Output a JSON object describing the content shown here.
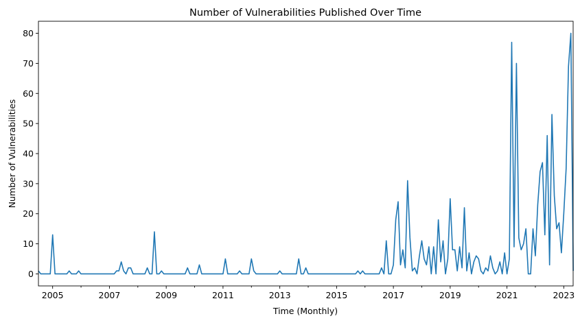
{
  "chart_data": {
    "type": "line",
    "title": "Number of Vulnerabilities Published Over Time",
    "xlabel": "Time (Monthly)",
    "ylabel": "Number of Vulnerabilities",
    "xlim": [
      2004.5,
      2023.33
    ],
    "ylim": [
      -4,
      84
    ],
    "grid": false,
    "line_color": "#1f77b4",
    "x_ticks": [
      {
        "value": 2005,
        "label": "2005"
      },
      {
        "value": 2007,
        "label": "2007"
      },
      {
        "value": 2009,
        "label": "2009"
      },
      {
        "value": 2011,
        "label": "2011"
      },
      {
        "value": 2013,
        "label": "2013"
      },
      {
        "value": 2015,
        "label": "2015"
      },
      {
        "value": 2017,
        "label": "2017"
      },
      {
        "value": 2019,
        "label": "2019"
      },
      {
        "value": 2021,
        "label": "2021"
      },
      {
        "value": 2023,
        "label": "2023"
      }
    ],
    "y_ticks": [
      {
        "value": 0,
        "label": "0"
      },
      {
        "value": 10,
        "label": "10"
      },
      {
        "value": 20,
        "label": "20"
      },
      {
        "value": 30,
        "label": "30"
      },
      {
        "value": 40,
        "label": "40"
      },
      {
        "value": 50,
        "label": "50"
      },
      {
        "value": 60,
        "label": "60"
      },
      {
        "value": 70,
        "label": "70"
      },
      {
        "value": 80,
        "label": "80"
      }
    ],
    "series": [
      {
        "points": [
          [
            "2004-07",
            1
          ],
          [
            "2004-08",
            0
          ],
          [
            "2004-09",
            0
          ],
          [
            "2004-10",
            0
          ],
          [
            "2004-11",
            0
          ],
          [
            "2004-12",
            0
          ],
          [
            "2005-01",
            13
          ],
          [
            "2005-02",
            0
          ],
          [
            "2005-03",
            0
          ],
          [
            "2005-04",
            0
          ],
          [
            "2005-05",
            0
          ],
          [
            "2005-06",
            0
          ],
          [
            "2005-07",
            0
          ],
          [
            "2005-08",
            1
          ],
          [
            "2005-09",
            0
          ],
          [
            "2005-10",
            0
          ],
          [
            "2005-11",
            0
          ],
          [
            "2005-12",
            1
          ],
          [
            "2006-01",
            0
          ],
          [
            "2006-02",
            0
          ],
          [
            "2006-03",
            0
          ],
          [
            "2006-04",
            0
          ],
          [
            "2006-05",
            0
          ],
          [
            "2006-06",
            0
          ],
          [
            "2006-07",
            0
          ],
          [
            "2006-08",
            0
          ],
          [
            "2006-09",
            0
          ],
          [
            "2006-10",
            0
          ],
          [
            "2006-11",
            0
          ],
          [
            "2006-12",
            0
          ],
          [
            "2007-01",
            0
          ],
          [
            "2007-02",
            0
          ],
          [
            "2007-03",
            0
          ],
          [
            "2007-04",
            1
          ],
          [
            "2007-05",
            1
          ],
          [
            "2007-06",
            4
          ],
          [
            "2007-07",
            1
          ],
          [
            "2007-08",
            0
          ],
          [
            "2007-09",
            2
          ],
          [
            "2007-10",
            2
          ],
          [
            "2007-11",
            0
          ],
          [
            "2007-12",
            0
          ],
          [
            "2008-01",
            0
          ],
          [
            "2008-02",
            0
          ],
          [
            "2008-03",
            0
          ],
          [
            "2008-04",
            0
          ],
          [
            "2008-05",
            2
          ],
          [
            "2008-06",
            0
          ],
          [
            "2008-07",
            0
          ],
          [
            "2008-08",
            14
          ],
          [
            "2008-09",
            0
          ],
          [
            "2008-10",
            0
          ],
          [
            "2008-11",
            1
          ],
          [
            "2008-12",
            0
          ],
          [
            "2009-01",
            0
          ],
          [
            "2009-02",
            0
          ],
          [
            "2009-03",
            0
          ],
          [
            "2009-04",
            0
          ],
          [
            "2009-05",
            0
          ],
          [
            "2009-06",
            0
          ],
          [
            "2009-07",
            0
          ],
          [
            "2009-08",
            0
          ],
          [
            "2009-09",
            0
          ],
          [
            "2009-10",
            2
          ],
          [
            "2009-11",
            0
          ],
          [
            "2009-12",
            0
          ],
          [
            "2010-01",
            0
          ],
          [
            "2010-02",
            0
          ],
          [
            "2010-03",
            3
          ],
          [
            "2010-04",
            0
          ],
          [
            "2010-05",
            0
          ],
          [
            "2010-06",
            0
          ],
          [
            "2010-07",
            0
          ],
          [
            "2010-08",
            0
          ],
          [
            "2010-09",
            0
          ],
          [
            "2010-10",
            0
          ],
          [
            "2010-11",
            0
          ],
          [
            "2010-12",
            0
          ],
          [
            "2011-01",
            0
          ],
          [
            "2011-02",
            5
          ],
          [
            "2011-03",
            0
          ],
          [
            "2011-04",
            0
          ],
          [
            "2011-05",
            0
          ],
          [
            "2011-06",
            0
          ],
          [
            "2011-07",
            0
          ],
          [
            "2011-08",
            1
          ],
          [
            "2011-09",
            0
          ],
          [
            "2011-10",
            0
          ],
          [
            "2011-11",
            0
          ],
          [
            "2011-12",
            0
          ],
          [
            "2012-01",
            5
          ],
          [
            "2012-02",
            1
          ],
          [
            "2012-03",
            0
          ],
          [
            "2012-04",
            0
          ],
          [
            "2012-05",
            0
          ],
          [
            "2012-06",
            0
          ],
          [
            "2012-07",
            0
          ],
          [
            "2012-08",
            0
          ],
          [
            "2012-09",
            0
          ],
          [
            "2012-10",
            0
          ],
          [
            "2012-11",
            0
          ],
          [
            "2012-12",
            0
          ],
          [
            "2013-01",
            1
          ],
          [
            "2013-02",
            0
          ],
          [
            "2013-03",
            0
          ],
          [
            "2013-04",
            0
          ],
          [
            "2013-05",
            0
          ],
          [
            "2013-06",
            0
          ],
          [
            "2013-07",
            0
          ],
          [
            "2013-08",
            0
          ],
          [
            "2013-09",
            5
          ],
          [
            "2013-10",
            0
          ],
          [
            "2013-11",
            0
          ],
          [
            "2013-12",
            2
          ],
          [
            "2014-01",
            0
          ],
          [
            "2014-02",
            0
          ],
          [
            "2014-03",
            0
          ],
          [
            "2014-04",
            0
          ],
          [
            "2014-05",
            0
          ],
          [
            "2014-06",
            0
          ],
          [
            "2014-07",
            0
          ],
          [
            "2014-08",
            0
          ],
          [
            "2014-09",
            0
          ],
          [
            "2014-10",
            0
          ],
          [
            "2014-11",
            0
          ],
          [
            "2014-12",
            0
          ],
          [
            "2015-01",
            0
          ],
          [
            "2015-02",
            0
          ],
          [
            "2015-03",
            0
          ],
          [
            "2015-04",
            0
          ],
          [
            "2015-05",
            0
          ],
          [
            "2015-06",
            0
          ],
          [
            "2015-07",
            0
          ],
          [
            "2015-08",
            0
          ],
          [
            "2015-09",
            0
          ],
          [
            "2015-10",
            1
          ],
          [
            "2015-11",
            0
          ],
          [
            "2015-12",
            1
          ],
          [
            "2016-01",
            0
          ],
          [
            "2016-02",
            0
          ],
          [
            "2016-03",
            0
          ],
          [
            "2016-04",
            0
          ],
          [
            "2016-05",
            0
          ],
          [
            "2016-06",
            0
          ],
          [
            "2016-07",
            0
          ],
          [
            "2016-08",
            2
          ],
          [
            "2016-09",
            0
          ],
          [
            "2016-10",
            11
          ],
          [
            "2016-11",
            0
          ],
          [
            "2016-12",
            0
          ],
          [
            "2017-01",
            3
          ],
          [
            "2017-02",
            18
          ],
          [
            "2017-03",
            24
          ],
          [
            "2017-04",
            3
          ],
          [
            "2017-05",
            8
          ],
          [
            "2017-06",
            2
          ],
          [
            "2017-07",
            31
          ],
          [
            "2017-08",
            12
          ],
          [
            "2017-09",
            1
          ],
          [
            "2017-10",
            2
          ],
          [
            "2017-11",
            0
          ],
          [
            "2017-12",
            6
          ],
          [
            "2018-01",
            11
          ],
          [
            "2018-02",
            5
          ],
          [
            "2018-03",
            3
          ],
          [
            "2018-04",
            9
          ],
          [
            "2018-05",
            0
          ],
          [
            "2018-06",
            9
          ],
          [
            "2018-07",
            0
          ],
          [
            "2018-08",
            18
          ],
          [
            "2018-09",
            4
          ],
          [
            "2018-10",
            11
          ],
          [
            "2018-11",
            0
          ],
          [
            "2018-12",
            5
          ],
          [
            "2019-01",
            25
          ],
          [
            "2019-02",
            8
          ],
          [
            "2019-03",
            8
          ],
          [
            "2019-04",
            1
          ],
          [
            "2019-05",
            9
          ],
          [
            "2019-06",
            2
          ],
          [
            "2019-07",
            22
          ],
          [
            "2019-08",
            1
          ],
          [
            "2019-09",
            7
          ],
          [
            "2019-10",
            0
          ],
          [
            "2019-11",
            4
          ],
          [
            "2019-12",
            6
          ],
          [
            "2020-01",
            5
          ],
          [
            "2020-02",
            1
          ],
          [
            "2020-03",
            0
          ],
          [
            "2020-04",
            2
          ],
          [
            "2020-05",
            1
          ],
          [
            "2020-06",
            6
          ],
          [
            "2020-07",
            2
          ],
          [
            "2020-08",
            0
          ],
          [
            "2020-09",
            1
          ],
          [
            "2020-10",
            4
          ],
          [
            "2020-11",
            0
          ],
          [
            "2020-12",
            7
          ],
          [
            "2021-01",
            0
          ],
          [
            "2021-02",
            5
          ],
          [
            "2021-03",
            77
          ],
          [
            "2021-04",
            9
          ],
          [
            "2021-05",
            70
          ],
          [
            "2021-06",
            12
          ],
          [
            "2021-07",
            8
          ],
          [
            "2021-08",
            10
          ],
          [
            "2021-09",
            15
          ],
          [
            "2021-10",
            0
          ],
          [
            "2021-11",
            0
          ],
          [
            "2021-12",
            15
          ],
          [
            "2022-01",
            6
          ],
          [
            "2022-02",
            23
          ],
          [
            "2022-03",
            34
          ],
          [
            "2022-04",
            37
          ],
          [
            "2022-05",
            13
          ],
          [
            "2022-06",
            46
          ],
          [
            "2022-07",
            3
          ],
          [
            "2022-08",
            53
          ],
          [
            "2022-09",
            26
          ],
          [
            "2022-10",
            15
          ],
          [
            "2022-11",
            17
          ],
          [
            "2022-12",
            7
          ],
          [
            "2023-01",
            20
          ],
          [
            "2023-02",
            35
          ],
          [
            "2023-03",
            69
          ],
          [
            "2023-04",
            80
          ],
          [
            "2023-05",
            1
          ]
        ]
      }
    ]
  }
}
